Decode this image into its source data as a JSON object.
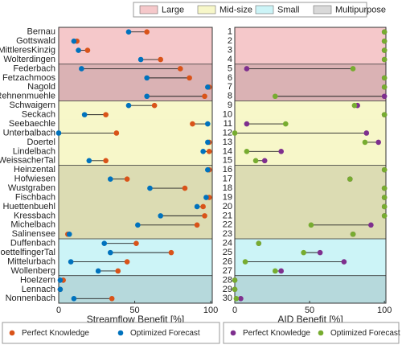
{
  "legend": [
    {
      "name": "Large",
      "color": "#f5c8ca"
    },
    {
      "name": "Mid-size",
      "color": "#f7f7c9"
    },
    {
      "name": "Small",
      "color": "#ccf4f7"
    },
    {
      "name": "Multipurpose",
      "color": "#d9d9d9"
    }
  ],
  "row_types": [
    "Large",
    "Large",
    "Large",
    "Large",
    "Large",
    "Large",
    "Large",
    "Large",
    "Mid-size",
    "Mid-size",
    "Mid-size",
    "Mid-size",
    "Mid-size",
    "Mid-size",
    "Mid-size",
    "Mid-size",
    "Mid-size",
    "Mid-size",
    "Mid-size",
    "Mid-size",
    "Mid-size",
    "Mid-size",
    "Mid-size",
    "Small",
    "Small",
    "Small",
    "Small",
    "Small",
    "Small",
    "Small"
  ],
  "multipurpose": [
    false,
    false,
    false,
    false,
    true,
    true,
    true,
    true,
    false,
    false,
    false,
    false,
    false,
    false,
    false,
    true,
    true,
    true,
    true,
    true,
    true,
    true,
    true,
    false,
    false,
    false,
    false,
    true,
    true,
    true
  ],
  "chart_data": [
    {
      "type": "dumbbell",
      "xlabel": "Streamflow Benefit [%]",
      "categories": [
        "Bernau",
        "Gottswald",
        "MittleresKinzig",
        "Wolterdingen",
        "Federbach",
        "Fetzachmoos",
        "Nagold",
        "Rehnenmuehle",
        "Schwaigern",
        "Seckach",
        "Seebaechle",
        "Unterbalbach",
        "Doertel",
        "Lindelbach",
        "WeissacherTal",
        "Heinzental",
        "Hofwiesen",
        "Wustgraben",
        "Fischbach",
        "Huettenbuehl",
        "Kressbach",
        "Michelbach",
        "Salinensee",
        "Duffenbach",
        "GoettelfingerTal",
        "Mittelurbach",
        "Wollenberg",
        "Hoelzern",
        "Lennach",
        "Nonnenbach"
      ],
      "xlim": [
        0,
        101
      ],
      "xticks": [
        0,
        50,
        100
      ],
      "series": [
        {
          "name": "Perfect Knowledge",
          "color": "#d95319",
          "values": [
            58,
            12,
            19,
            67,
            80,
            86,
            99,
            96,
            63,
            31,
            88,
            38,
            99,
            99,
            31,
            99,
            45,
            83,
            99,
            95,
            96,
            91,
            6,
            51,
            74,
            45,
            39,
            3,
            1,
            35
          ]
        },
        {
          "name": "Optimized Forecast",
          "color": "#0072bd",
          "values": [
            46,
            10,
            13,
            54,
            15,
            58,
            98,
            58,
            46,
            17,
            98,
            0,
            98,
            95,
            20,
            98,
            34,
            60,
            97,
            91,
            67,
            52,
            7,
            30,
            34,
            8,
            26,
            1,
            1,
            10
          ]
        }
      ]
    },
    {
      "type": "dumbbell",
      "xlabel": "AID Benefit [%]",
      "categories": [
        "1",
        "2",
        "3",
        "4",
        "5",
        "6",
        "7",
        "8",
        "9",
        "10",
        "11",
        "12",
        "13",
        "14",
        "15",
        "16",
        "17",
        "18",
        "19",
        "20",
        "21",
        "22",
        "23",
        "24",
        "25",
        "26",
        "27",
        "28",
        "29",
        "30"
      ],
      "xlim": [
        0,
        101
      ],
      "xticks": [
        0,
        50,
        100
      ],
      "series": [
        {
          "name": "Perfect Knowledge",
          "color": "#7e2f8e",
          "values": [
            100,
            100,
            100,
            100,
            8,
            100,
            100,
            100,
            82,
            100,
            8,
            88,
            96,
            31,
            20,
            100,
            77,
            100,
            100,
            100,
            100,
            91,
            79,
            16,
            57,
            73,
            31,
            0,
            0,
            4
          ]
        },
        {
          "name": "Optimized Forecast",
          "color": "#77ac30",
          "values": [
            100,
            100,
            100,
            100,
            79,
            100,
            100,
            27,
            80,
            100,
            34,
            0,
            87,
            8,
            14,
            100,
            77,
            100,
            100,
            100,
            100,
            51,
            79,
            16,
            46,
            7,
            27,
            0,
            0,
            1
          ]
        }
      ]
    }
  ]
}
